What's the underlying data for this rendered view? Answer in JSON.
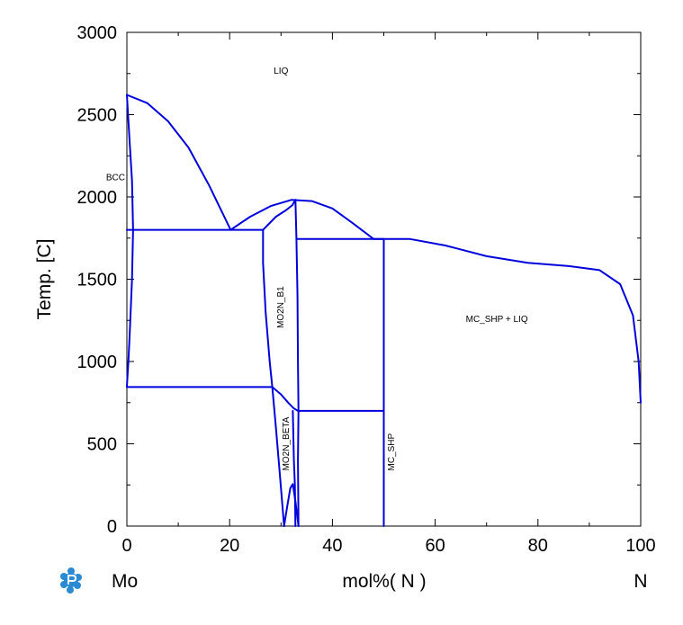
{
  "chart_data": {
    "type": "line",
    "title": "",
    "xlabel": "mol%( N )",
    "ylabel": "Temp. [C]",
    "xlim": [
      0,
      100
    ],
    "ylim": [
      0,
      3000
    ],
    "x_ticks": [
      0,
      20,
      40,
      60,
      80,
      100
    ],
    "y_ticks": [
      0,
      500,
      1000,
      1500,
      2000,
      2500,
      3000
    ],
    "x_tick_labels": [
      "0",
      "20",
      "40",
      "60",
      "80",
      "100"
    ],
    "y_tick_labels": [
      "0",
      "500",
      "1000",
      "1500",
      "2000",
      "2500",
      "3000"
    ],
    "grid": false,
    "line_color": "#0000dd",
    "left_component": "Mo",
    "right_component": "N",
    "phase_labels": [
      {
        "text": "LIQ",
        "x": 30,
        "y": 2750,
        "rotation": 0
      },
      {
        "text": "BCC",
        "x": -2.2,
        "y": 2100,
        "rotation": 0
      },
      {
        "text": "MO2N_B1",
        "x": 30.5,
        "y": 1330,
        "rotation": -90
      },
      {
        "text": "MC_SHP + LIQ",
        "x": 72,
        "y": 1240,
        "rotation": 0
      },
      {
        "text": "MO2N_BETA",
        "x": 31.5,
        "y": 500,
        "rotation": -90
      },
      {
        "text": "MC_SHP",
        "x": 52,
        "y": 450,
        "rotation": -90
      }
    ],
    "series": [
      {
        "points": [
          [
            0,
            2620
          ],
          [
            4,
            2570
          ],
          [
            8,
            2460
          ],
          [
            12,
            2300
          ],
          [
            16,
            2070
          ],
          [
            20.2,
            1800
          ]
        ]
      },
      {
        "points": [
          [
            20.2,
            1800
          ],
          [
            24,
            1880
          ],
          [
            28,
            1945
          ],
          [
            32,
            1982
          ],
          [
            36,
            1975
          ],
          [
            40,
            1930
          ],
          [
            44,
            1840
          ],
          [
            48,
            1745
          ]
        ]
      },
      {
        "points": [
          [
            26.5,
            1800
          ],
          [
            29,
            1880
          ],
          [
            31,
            1920
          ],
          [
            32.2,
            1950
          ],
          [
            32.8,
            1982
          ]
        ]
      },
      {
        "points": [
          [
            48,
            1745
          ],
          [
            55,
            1745
          ],
          [
            62,
            1705
          ],
          [
            70,
            1640
          ],
          [
            78,
            1600
          ],
          [
            86,
            1580
          ],
          [
            92,
            1555
          ],
          [
            96,
            1470
          ],
          [
            98.5,
            1280
          ],
          [
            99.6,
            1000
          ],
          [
            100,
            750
          ]
        ]
      },
      {
        "points": [
          [
            0,
            2620
          ],
          [
            0.5,
            2350
          ],
          [
            1.0,
            2100
          ],
          [
            1.2,
            1800
          ],
          [
            1.0,
            1500
          ],
          [
            0.6,
            1200
          ],
          [
            0.3,
            1000
          ],
          [
            0,
            850
          ]
        ]
      },
      {
        "points": [
          [
            0,
            1800
          ],
          [
            26.5,
            1800
          ]
        ]
      },
      {
        "points": [
          [
            0,
            845
          ],
          [
            28.3,
            845
          ]
        ]
      },
      {
        "points": [
          [
            26.5,
            1800
          ],
          [
            26.5,
            1600
          ],
          [
            27.0,
            1300
          ],
          [
            27.8,
            1000
          ],
          [
            28.3,
            845
          ],
          [
            29.0,
            600
          ],
          [
            29.8,
            300
          ],
          [
            30.6,
            0
          ]
        ]
      },
      {
        "points": [
          [
            32.8,
            1982
          ],
          [
            33.0,
            1750
          ],
          [
            33.2,
            1400
          ],
          [
            33.3,
            1000
          ],
          [
            33.4,
            700
          ],
          [
            33.3,
            400
          ],
          [
            33.4,
            0
          ]
        ]
      },
      {
        "points": [
          [
            28.3,
            845
          ],
          [
            30.0,
            800
          ],
          [
            31.4,
            750
          ],
          [
            32.5,
            715
          ],
          [
            33.3,
            700
          ]
        ]
      },
      {
        "points": [
          [
            32.3,
            700
          ],
          [
            32.5,
            400
          ],
          [
            32.7,
            250
          ],
          [
            32.8,
            0
          ]
        ]
      },
      {
        "points": [
          [
            30.6,
            0
          ],
          [
            31.2,
            120
          ],
          [
            31.8,
            230
          ],
          [
            32.3,
            255
          ],
          [
            32.8,
            150
          ],
          [
            33.4,
            0
          ]
        ]
      },
      {
        "points": [
          [
            33.1,
            1745
          ],
          [
            50,
            1745
          ]
        ]
      },
      {
        "points": [
          [
            33.3,
            700
          ],
          [
            50,
            700
          ]
        ]
      },
      {
        "points": [
          [
            50,
            1745
          ],
          [
            50,
            0
          ]
        ]
      }
    ]
  }
}
